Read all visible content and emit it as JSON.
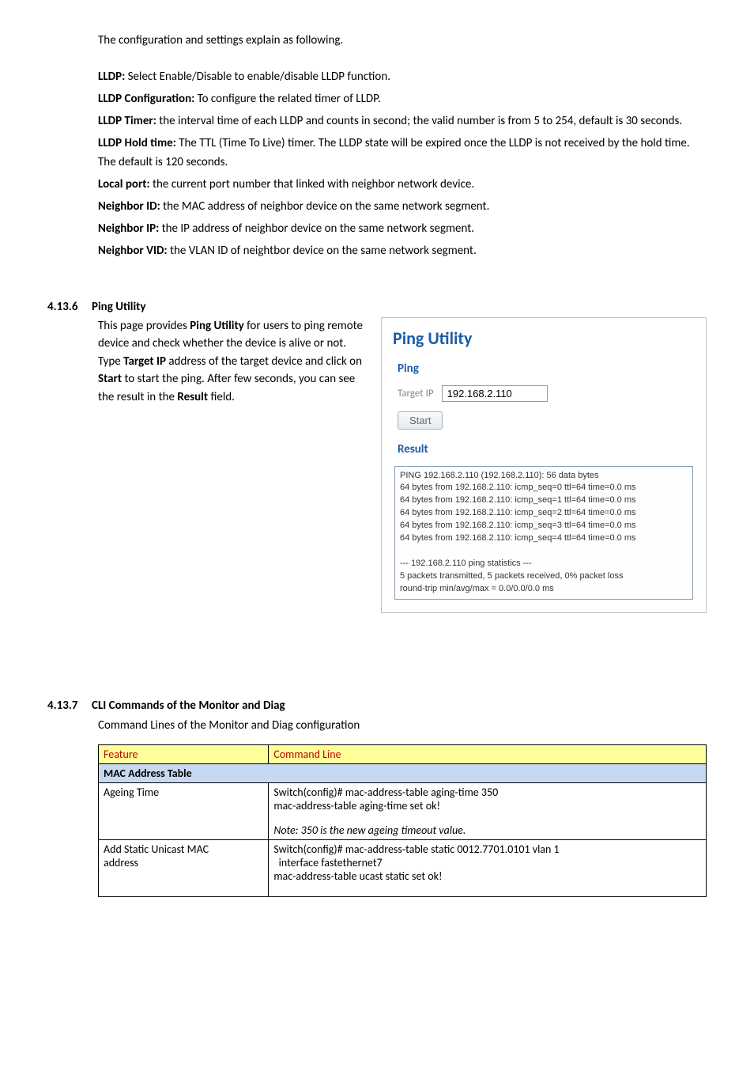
{
  "intro": "The configuration and settings explain as following.",
  "defs": [
    {
      "term": "LLDP:",
      "text": " Select Enable/Disable to enable/disable LLDP function."
    },
    {
      "term": "LLDP Configuration:",
      "text": " To configure the related timer of LLDP."
    },
    {
      "term": "LLDP Timer:",
      "text": " the interval time of each LLDP and counts in second; the valid number is from 5 to 254, default is 30 seconds."
    },
    {
      "term": "LLDP Hold time:",
      "text": " The TTL (Time To Live) timer. The LLDP state will be expired once the LLDP is not received by the hold time. The default is 120 seconds."
    },
    {
      "term": "Local port:",
      "text": " the current port number that linked with neighbor network device."
    },
    {
      "term": "Neighbor ID:",
      "text": " the MAC address of neighbor device on the same network segment."
    },
    {
      "term": "Neighbor IP:",
      "text": " the IP address of neighbor device on the same network segment."
    },
    {
      "term": "Neighbor VID:",
      "text": " the VLAN ID of neightbor device on the same network segment."
    }
  ],
  "sec1": {
    "num": "4.13.6",
    "title": "Ping Utility",
    "body_pre": "This page provides ",
    "body_bold1": "Ping Utility",
    "body_mid1": " for users to ping remote device and check whether the device is alive or not. Type ",
    "body_bold2": "Target IP",
    "body_mid2": " address of the target device and click on ",
    "body_bold3": "Start",
    "body_mid3": " to start the ping. After few seconds, you can see the result in the ",
    "body_bold4": "Result",
    "body_end": " field."
  },
  "panel": {
    "title": "Ping Utility",
    "ping_label": "Ping",
    "target_label": "Target IP",
    "target_value": "192.168.2.110",
    "start_btn": "Start",
    "result_label": "Result",
    "result_lines": [
      "PING 192.168.2.110 (192.168.2.110): 56 data bytes",
      "64 bytes from 192.168.2.110: icmp_seq=0 ttl=64 time=0.0 ms",
      "64 bytes from 192.168.2.110: icmp_seq=1 ttl=64 time=0.0 ms",
      "64 bytes from 192.168.2.110: icmp_seq=2 ttl=64 time=0.0 ms",
      "64 bytes from 192.168.2.110: icmp_seq=3 ttl=64 time=0.0 ms",
      "64 bytes from 192.168.2.110: icmp_seq=4 ttl=64 time=0.0 ms",
      "",
      "--- 192.168.2.110 ping statistics ---",
      "5 packets transmitted, 5 packets received, 0% packet loss",
      "round-trip min/avg/max = 0.0/0.0/0.0 ms"
    ]
  },
  "sec2": {
    "num": "4.13.7",
    "title": "CLI Commands of the Monitor and Diag",
    "sub": "Command Lines of the Monitor and Diag configuration"
  },
  "table": {
    "h1": "Feature",
    "h2": "Command Line",
    "sub1": "MAC Address Table",
    "r1c1": "Ageing Time",
    "r1c2a": "Switch(config)# mac-address-table aging-time 350",
    "r1c2b": "mac-address-table aging-time set ok!",
    "r1c2c": "Note: 350 is the new ageing timeout value.",
    "r2c1a": "Add Static Unicast MAC",
    "r2c1b": "address",
    "r2c2a": "Switch(config)# mac-address-table static 0012.7701.0101 vlan 1",
    "r2c2b": "  interface fastethernet7",
    "r2c2c": "mac-address-table ucast static set ok!"
  }
}
